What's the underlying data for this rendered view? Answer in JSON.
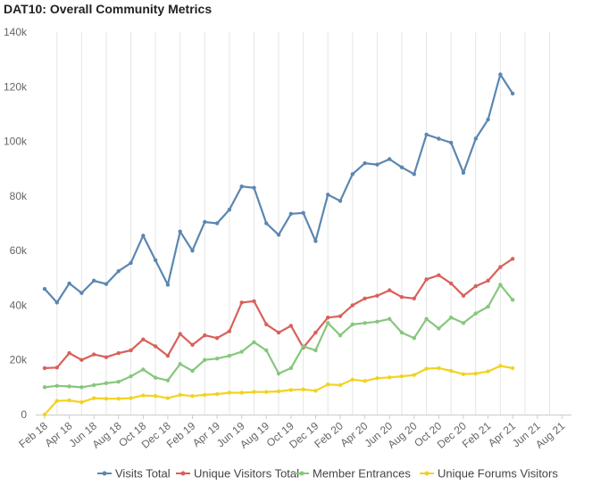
{
  "chart_data": {
    "type": "line",
    "title": "DAT10: Overall Community Metrics",
    "xlabel": "",
    "ylabel": "",
    "ylim": [
      0,
      140000
    ],
    "yticks": [
      0,
      20000,
      40000,
      60000,
      80000,
      100000,
      120000,
      140000
    ],
    "yticklabels": [
      "0",
      "20k",
      "40k",
      "60k",
      "80k",
      "100k",
      "120k",
      "140k"
    ],
    "xticklabels": [
      "Feb 18",
      "Apr 18",
      "Jun 18",
      "Aug 18",
      "Oct 18",
      "Dec 18",
      "Feb 19",
      "Apr 19",
      "Jun 19",
      "Aug 19",
      "Oct 19",
      "Dec 19",
      "Feb 20",
      "Apr 20",
      "Jun 20",
      "Aug 20",
      "Oct 20",
      "Dec 20",
      "Feb 21",
      "Apr 21",
      "Jun 21",
      "Aug 21"
    ],
    "x": [
      "Feb 18",
      "Mar 18",
      "Apr 18",
      "May 18",
      "Jun 18",
      "Jul 18",
      "Aug 18",
      "Sep 18",
      "Oct 18",
      "Nov 18",
      "Dec 18",
      "Jan 19",
      "Feb 19",
      "Mar 19",
      "Apr 19",
      "May 19",
      "Jun 19",
      "Jul 19",
      "Aug 19",
      "Sep 19",
      "Oct 19",
      "Nov 19",
      "Dec 19",
      "Jan 20",
      "Feb 20",
      "Mar 20",
      "Apr 20",
      "May 20",
      "Jun 20",
      "Jul 20",
      "Aug 20",
      "Sep 20",
      "Oct 20",
      "Nov 20",
      "Dec 20",
      "Jan 21",
      "Feb 21",
      "Mar 21",
      "Apr 21"
    ],
    "grid": "vertical",
    "legend_position": "bottom",
    "series": [
      {
        "name": "Visits Total",
        "color": "#5b87b1",
        "values": [
          46000,
          41000,
          48000,
          44500,
          49000,
          47800,
          52500,
          55500,
          65500,
          56500,
          47500,
          67000,
          60000,
          70500,
          70000,
          75000,
          83500,
          83000,
          70000,
          65800,
          73500,
          73800,
          63500,
          80500,
          78200,
          88000,
          92000,
          91500,
          93500,
          90500,
          88000,
          102500,
          101000,
          99500,
          88500,
          101000,
          108000,
          124500,
          117500
        ]
      },
      {
        "name": "Unique Visitors Total",
        "color": "#d9605a",
        "values": [
          17000,
          17200,
          22500,
          20000,
          22000,
          21000,
          22500,
          23500,
          27500,
          25000,
          21500,
          29500,
          25500,
          29000,
          28000,
          30500,
          41000,
          41500,
          33000,
          30000,
          32500,
          24500,
          30000,
          35500,
          36000,
          40000,
          42500,
          43500,
          45500,
          43000,
          42500,
          49500,
          51000,
          48000,
          43500,
          47000,
          49000,
          54000,
          57000
        ]
      },
      {
        "name": "Member Entrances",
        "color": "#86c77d",
        "values": [
          10000,
          10500,
          10300,
          10000,
          10800,
          11500,
          12000,
          14000,
          16500,
          13500,
          12500,
          18500,
          16000,
          20000,
          20500,
          21500,
          23000,
          26500,
          23500,
          15000,
          17000,
          25000,
          23500,
          33500,
          29000,
          33000,
          33500,
          34000,
          35000,
          30000,
          28000,
          35000,
          31500,
          35500,
          33500,
          37000,
          39500,
          47500,
          42000
        ]
      },
      {
        "name": "Unique Forums Visitors",
        "color": "#f2d320",
        "values": [
          0,
          5000,
          5200,
          4500,
          6000,
          5800,
          5800,
          6000,
          7000,
          6800,
          6000,
          7200,
          6800,
          7200,
          7500,
          8000,
          8000,
          8300,
          8300,
          8500,
          9000,
          9200,
          8700,
          11000,
          10800,
          12800,
          12300,
          13300,
          13600,
          14000,
          14500,
          16800,
          17000,
          16000,
          14800,
          15000,
          15800,
          17800,
          17000
        ]
      }
    ]
  }
}
